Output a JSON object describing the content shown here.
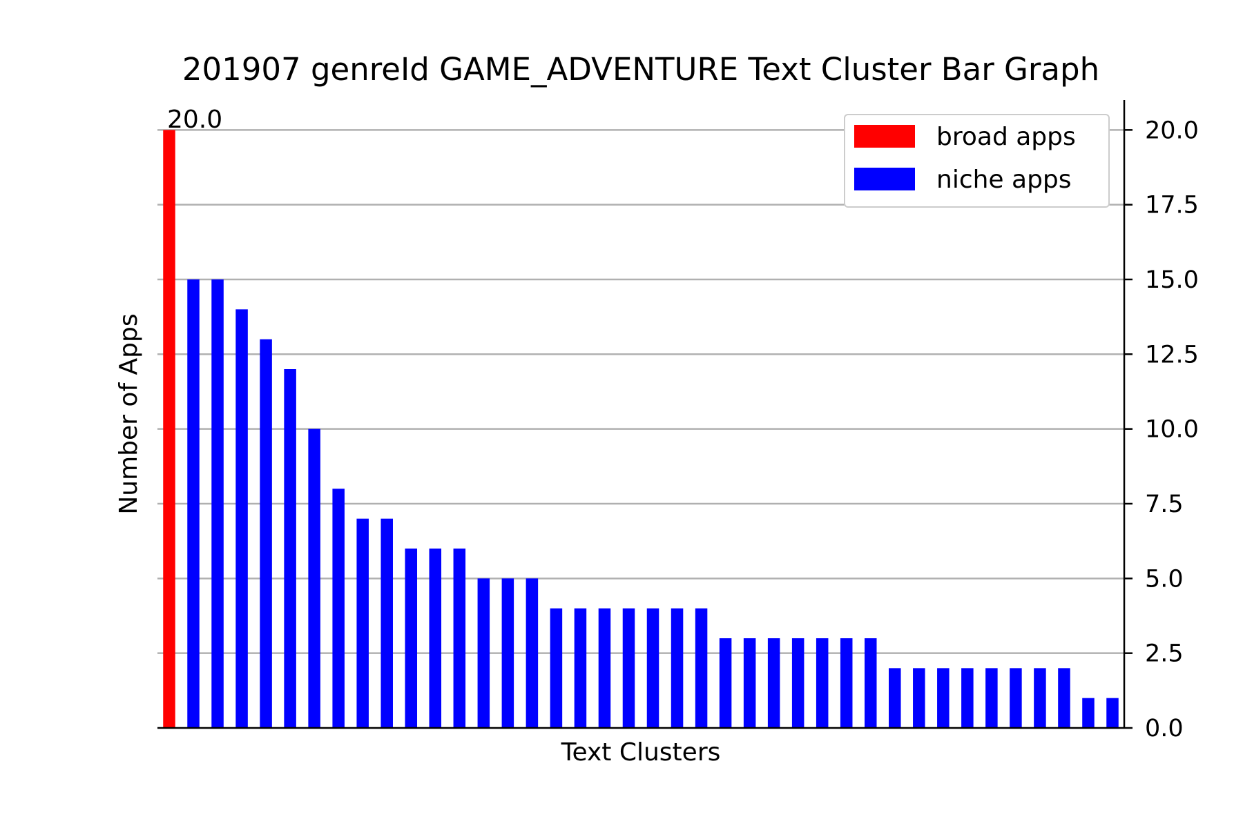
{
  "chart_data": {
    "type": "bar",
    "title": "201907 genreId GAME_ADVENTURE Text Cluster Bar Graph",
    "xlabel": "Text Clusters",
    "ylabel": "Number of Apps",
    "ylim": [
      0,
      21
    ],
    "y_ticks": [
      "0.0",
      "2.5",
      "5.0",
      "7.5",
      "10.0",
      "12.5",
      "15.0",
      "17.5",
      "20.0"
    ],
    "y_tick_values": [
      0,
      2.5,
      5,
      7.5,
      10,
      12.5,
      15,
      17.5,
      20
    ],
    "y_axis_side": "right",
    "grid": "horizontal",
    "legend_position": "top-right",
    "series": [
      {
        "name": "broad apps",
        "color": "#ff0000",
        "values": [
          20
        ]
      },
      {
        "name": "niche apps",
        "color": "#0000ff",
        "values": [
          15,
          15,
          14,
          13,
          12,
          10,
          8,
          7,
          7,
          6,
          6,
          6,
          5,
          5,
          5,
          4,
          4,
          4,
          4,
          4,
          4,
          4,
          3,
          3,
          3,
          3,
          3,
          3,
          3,
          2,
          2,
          2,
          2,
          2,
          2,
          2,
          2,
          1,
          1
        ]
      }
    ],
    "data_label": "20.0"
  }
}
